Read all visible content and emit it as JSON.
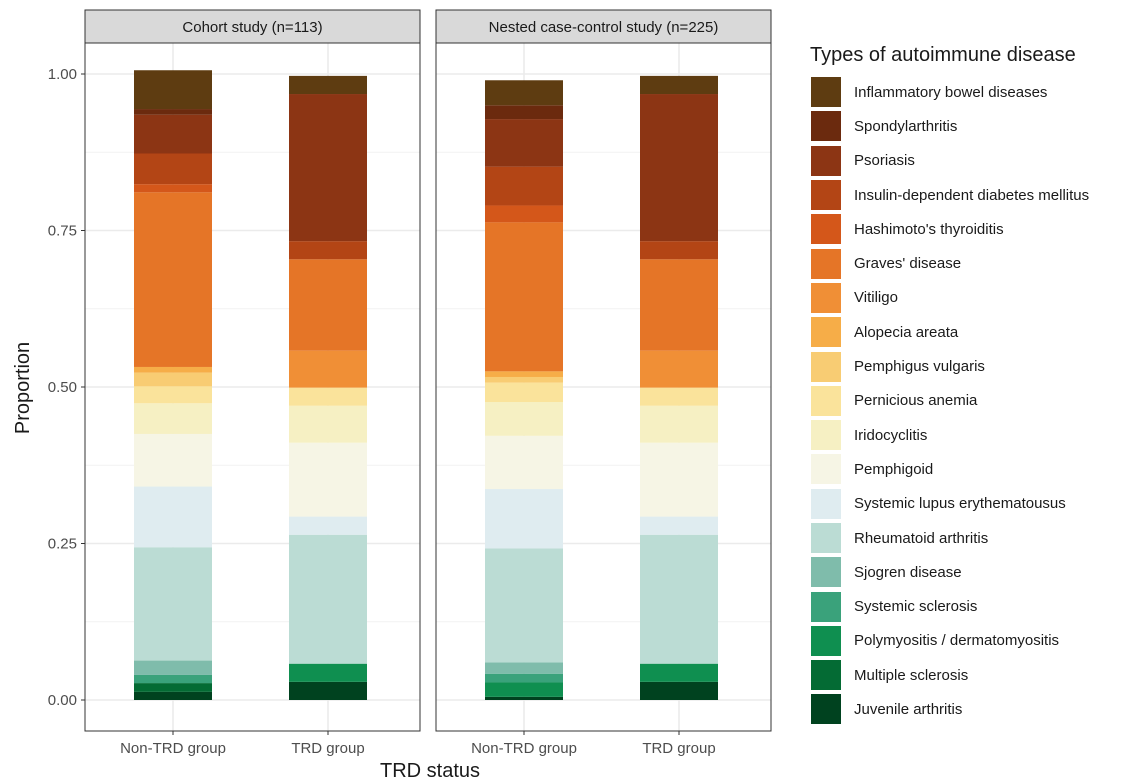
{
  "chart_data": {
    "type": "bar",
    "stacked": true,
    "xlabel": "TRD status",
    "ylabel": "Proportion",
    "ylim": [
      0,
      1
    ],
    "yticks": [
      "0.00",
      "0.25",
      "0.50",
      "0.75",
      "1.00"
    ],
    "categories": [
      "Non-TRD group",
      "TRD group"
    ],
    "legend_title": "Types of autoimmune disease",
    "legend_position": "right",
    "grid": true,
    "panels": [
      {
        "title": "Cohort study (n=113)",
        "series": [
          {
            "name": "Inflammatory bowel diseases",
            "color": "#5e3c11",
            "values": [
              0.062,
              0.029
            ]
          },
          {
            "name": "Spondylarthritis",
            "color": "#6b2a0e",
            "values": [
              0.009,
              0.0
            ]
          },
          {
            "name": "Psoriasis",
            "color": "#8c3514",
            "values": [
              0.062,
              0.235
            ]
          },
          {
            "name": "Insulin-dependent diabetes mellitus",
            "color": "#b34515",
            "values": [
              0.049,
              0.029
            ]
          },
          {
            "name": "Hashimoto's thyroiditis",
            "color": "#d4571a",
            "values": [
              0.013,
              0.0
            ]
          },
          {
            "name": "Graves' disease",
            "color": "#e57527",
            "values": [
              0.279,
              0.146
            ]
          },
          {
            "name": "Vitiligo",
            "color": "#f08f36",
            "values": [
              0.0,
              0.059
            ]
          },
          {
            "name": "Alopecia areata",
            "color": "#f6ad48",
            "values": [
              0.009,
              0.0
            ]
          },
          {
            "name": "Pemphigus vulgaris",
            "color": "#f8cc73",
            "values": [
              0.022,
              0.0
            ]
          },
          {
            "name": "Pernicious anemia",
            "color": "#fae39b",
            "values": [
              0.027,
              0.029
            ]
          },
          {
            "name": "Iridocyclitis",
            "color": "#f6f0c3",
            "values": [
              0.049,
              0.059
            ]
          },
          {
            "name": "Pemphigoid",
            "color": "#f6f5e5",
            "values": [
              0.084,
              0.118
            ]
          },
          {
            "name": "Systemic lupus erythematousus",
            "color": "#dfecf0",
            "values": [
              0.097,
              0.029
            ]
          },
          {
            "name": "Rheumatoid arthritis",
            "color": "#bbdcd4",
            "values": [
              0.181,
              0.206
            ]
          },
          {
            "name": "Sjogren disease",
            "color": "#7fbcab",
            "values": [
              0.023,
              0.0
            ]
          },
          {
            "name": "Systemic sclerosis",
            "color": "#3aa27b",
            "values": [
              0.013,
              0.0
            ]
          },
          {
            "name": "Polymyositis / dermatomyositis",
            "color": "#0f8f50",
            "values": [
              0.0,
              0.029
            ]
          },
          {
            "name": "Multiple sclerosis",
            "color": "#046b34",
            "values": [
              0.014,
              0.0
            ]
          },
          {
            "name": "Juvenile arthritis",
            "color": "#00421f",
            "values": [
              0.013,
              0.029
            ]
          }
        ]
      },
      {
        "title": "Nested case-control study (n=225)",
        "series": [
          {
            "name": "Inflammatory bowel diseases",
            "color": "#5e3c11",
            "values": [
              0.04,
              0.029
            ]
          },
          {
            "name": "Spondylarthritis",
            "color": "#6b2a0e",
            "values": [
              0.022,
              0.0
            ]
          },
          {
            "name": "Psoriasis",
            "color": "#8c3514",
            "values": [
              0.076,
              0.235
            ]
          },
          {
            "name": "Insulin-dependent diabetes mellitus",
            "color": "#b34515",
            "values": [
              0.062,
              0.029
            ]
          },
          {
            "name": "Hashimoto's thyroiditis",
            "color": "#d4571a",
            "values": [
              0.027,
              0.0
            ]
          },
          {
            "name": "Graves' disease",
            "color": "#e57527",
            "values": [
              0.238,
              0.146
            ]
          },
          {
            "name": "Vitiligo",
            "color": "#f08f36",
            "values": [
              0.0,
              0.059
            ]
          },
          {
            "name": "Alopecia areata",
            "color": "#f6ad48",
            "values": [
              0.009,
              0.0
            ]
          },
          {
            "name": "Pemphigus vulgaris",
            "color": "#f8cc73",
            "values": [
              0.009,
              0.0
            ]
          },
          {
            "name": "Pernicious anemia",
            "color": "#fae39b",
            "values": [
              0.031,
              0.029
            ]
          },
          {
            "name": "Iridocyclitis",
            "color": "#f6f0c3",
            "values": [
              0.054,
              0.059
            ]
          },
          {
            "name": "Pemphigoid",
            "color": "#f6f5e5",
            "values": [
              0.085,
              0.118
            ]
          },
          {
            "name": "Systemic lupus erythematousus",
            "color": "#dfecf0",
            "values": [
              0.095,
              0.029
            ]
          },
          {
            "name": "Rheumatoid arthritis",
            "color": "#bbdcd4",
            "values": [
              0.182,
              0.206
            ]
          },
          {
            "name": "Sjogren disease",
            "color": "#7fbcab",
            "values": [
              0.018,
              0.0
            ]
          },
          {
            "name": "Systemic sclerosis",
            "color": "#3aa27b",
            "values": [
              0.014,
              0.0
            ]
          },
          {
            "name": "Polymyositis / dermatomyositis",
            "color": "#0f8f50",
            "values": [
              0.023,
              0.029
            ]
          },
          {
            "name": "Multiple sclerosis",
            "color": "#046b34",
            "values": [
              0.0,
              0.0
            ]
          },
          {
            "name": "Juvenile arthritis",
            "color": "#00421f",
            "values": [
              0.005,
              0.029
            ]
          }
        ]
      }
    ]
  }
}
